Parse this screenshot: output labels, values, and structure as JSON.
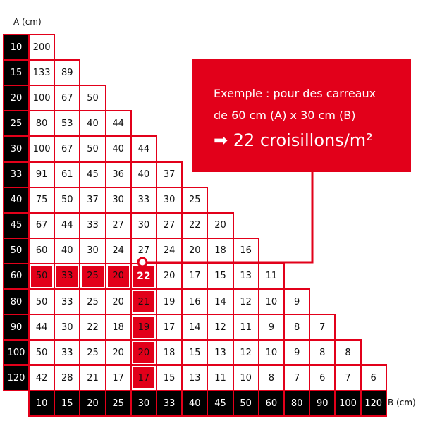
{
  "axis_a_label": "A (cm)",
  "axis_b_label": "B (cm)",
  "a_values": [
    "10",
    "15",
    "20",
    "25",
    "30",
    "33",
    "40",
    "45",
    "50",
    "60",
    "80",
    "90",
    "100",
    "120"
  ],
  "b_values": [
    "10",
    "15",
    "20",
    "25",
    "30",
    "33",
    "40",
    "45",
    "50",
    "60",
    "80",
    "90",
    "100",
    "120"
  ],
  "rows": [
    [
      "200"
    ],
    [
      "133",
      "89"
    ],
    [
      "100",
      "67",
      "50"
    ],
    [
      "80",
      "53",
      "40",
      "44"
    ],
    [
      "100",
      "67",
      "50",
      "40",
      "44"
    ],
    [
      "91",
      "61",
      "45",
      "36",
      "40",
      "37"
    ],
    [
      "75",
      "50",
      "37",
      "30",
      "33",
      "30",
      "25"
    ],
    [
      "67",
      "44",
      "33",
      "27",
      "30",
      "27",
      "22",
      "20"
    ],
    [
      "60",
      "40",
      "30",
      "24",
      "27",
      "24",
      "20",
      "18",
      "16"
    ],
    [
      "50",
      "33",
      "25",
      "20",
      "22",
      "20",
      "17",
      "15",
      "13",
      "11"
    ],
    [
      "50",
      "33",
      "25",
      "20",
      "21",
      "19",
      "16",
      "14",
      "12",
      "10",
      "9"
    ],
    [
      "44",
      "30",
      "22",
      "18",
      "19",
      "17",
      "14",
      "12",
      "11",
      "9",
      "8",
      "7"
    ],
    [
      "50",
      "33",
      "25",
      "20",
      "20",
      "18",
      "15",
      "13",
      "12",
      "10",
      "9",
      "8",
      "8"
    ],
    [
      "42",
      "28",
      "21",
      "17",
      "17",
      "15",
      "13",
      "11",
      "10",
      "8",
      "7",
      "6",
      "7",
      "6"
    ]
  ],
  "highlight": {
    "row_a": "60",
    "col_b": "30"
  },
  "callout": {
    "line1": "Exemple : pour des carreaux",
    "line2": "de 60 cm (A) x 30 cm (B)",
    "arrow": "➡",
    "result": "22 croisillons/m²"
  },
  "colors": {
    "accent": "#e2001a",
    "header": "#000000"
  }
}
